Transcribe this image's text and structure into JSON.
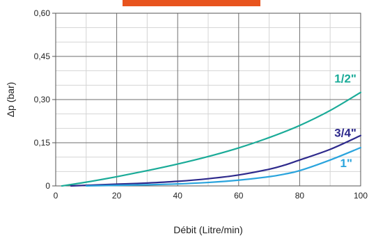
{
  "chart_data": {
    "type": "line",
    "xlabel": "Débit (Litre/min)",
    "ylabel": "Δp (bar)",
    "xlim": [
      0,
      100
    ],
    "ylim": [
      0,
      0.6
    ],
    "x_ticks": [
      0,
      20,
      40,
      60,
      80,
      100
    ],
    "y_ticks": [
      0,
      0.15,
      0.3,
      0.45,
      0.6
    ],
    "x_tick_labels": [
      "0",
      "20",
      "40",
      "60",
      "80",
      "100"
    ],
    "y_tick_labels": [
      "0",
      "0,15",
      "0,30",
      "0,45",
      "0,60"
    ],
    "grid": true,
    "header_bar_color": "#e8541e",
    "series": [
      {
        "name": "1/2\"",
        "color": "#1aab98",
        "x": [
          2,
          10,
          20,
          30,
          40,
          50,
          60,
          70,
          80,
          90,
          100
        ],
        "y": [
          0,
          0.013,
          0.032,
          0.053,
          0.076,
          0.102,
          0.132,
          0.168,
          0.21,
          0.262,
          0.325
        ]
      },
      {
        "name": "3/4\"",
        "color": "#2e2a8c",
        "x": [
          5,
          20,
          30,
          40,
          50,
          60,
          70,
          75,
          80,
          90,
          100
        ],
        "y": [
          0,
          0.006,
          0.01,
          0.016,
          0.025,
          0.038,
          0.058,
          0.072,
          0.09,
          0.127,
          0.175
        ]
      },
      {
        "name": "1\"",
        "color": "#2aa4dd",
        "x": [
          10,
          30,
          40,
          50,
          60,
          70,
          75,
          80,
          90,
          100
        ],
        "y": [
          0,
          0.004,
          0.007,
          0.012,
          0.02,
          0.032,
          0.041,
          0.053,
          0.09,
          0.133
        ]
      }
    ]
  }
}
